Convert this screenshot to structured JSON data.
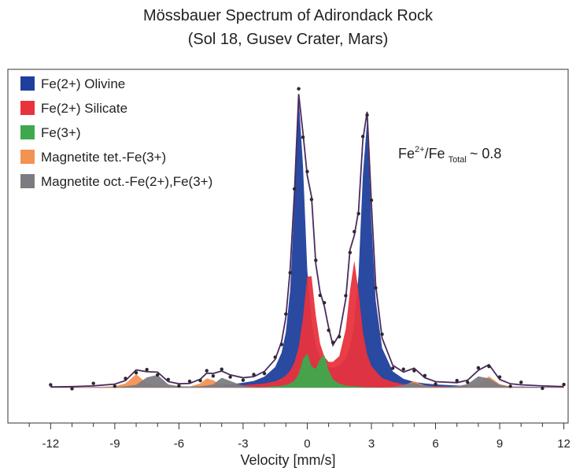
{
  "chart_data": {
    "type": "area",
    "title": "Mössbauer Spectrum of Adirondack Rock",
    "subtitle": "(Sol 18, Gusev Crater, Mars)",
    "xlabel": "Velocity [mm/s]",
    "xlim": [
      -14,
      12.2
    ],
    "xticks": [
      -12,
      -9,
      -6,
      -3,
      0,
      3,
      6,
      9,
      12
    ],
    "xminorticks": [
      -13,
      -11,
      -10,
      -8,
      -7,
      -5,
      -4,
      -2,
      -1,
      1,
      2,
      4,
      5,
      7,
      8,
      10,
      11
    ],
    "ylim": [
      -10,
      90
    ],
    "legend": "upper left",
    "annotation": {
      "parts": [
        "Fe",
        "2+",
        "/Fe",
        "Total",
        "~ 0.8"
      ]
    },
    "x": [
      -12,
      -11,
      -10,
      -9,
      -8.5,
      -8,
      -7.5,
      -7,
      -6.5,
      -6,
      -5.5,
      -5,
      -4.7,
      -4.4,
      -4,
      -3.6,
      -3,
      -2.5,
      -2,
      -1.5,
      -1.2,
      -1,
      -0.8,
      -0.6,
      -0.4,
      -0.2,
      0,
      0.2,
      0.4,
      0.6,
      0.8,
      1,
      1.2,
      1.5,
      1.8,
      2,
      2.2,
      2.4,
      2.6,
      2.8,
      3,
      3.2,
      3.5,
      4,
      4.5,
      5,
      5.5,
      6,
      7,
      7.5,
      8,
      8.5,
      9,
      9.5,
      10,
      11,
      12
    ],
    "series": [
      {
        "name": "Fe(2+) Olivine",
        "color": "#1f3f9c",
        "values": [
          0.1,
          0.1,
          0.1,
          0.2,
          0.2,
          0.2,
          0.2,
          0.2,
          0.3,
          0.3,
          0.3,
          0.4,
          0.5,
          0.6,
          0.8,
          0.9,
          1.4,
          1.9,
          3.1,
          5.8,
          9.9,
          15.7,
          27.4,
          52.2,
          81.9,
          62.9,
          33.4,
          18.8,
          12.0,
          8.6,
          6.8,
          5.8,
          5.6,
          6.2,
          8.3,
          11.6,
          18.1,
          32.0,
          60.0,
          75.4,
          46.9,
          24.7,
          11.2,
          4.6,
          2.5,
          1.6,
          1.2,
          0.9,
          0.6,
          0.5,
          0.4,
          0.4,
          0.3,
          0.3,
          0.3,
          0.2,
          0.2
        ]
      },
      {
        "name": "Fe(2+) Silicate",
        "color": "#e8333d",
        "values": [
          0.1,
          0.1,
          0.2,
          0.2,
          0.2,
          0.2,
          0.2,
          0.2,
          0.3,
          0.3,
          0.3,
          0.4,
          0.4,
          0.4,
          0.5,
          0.5,
          0.7,
          0.9,
          1.2,
          1.8,
          2.6,
          3.4,
          4.8,
          7.1,
          11.5,
          19.8,
          31.4,
          31.5,
          20.4,
          12.5,
          8.7,
          7.3,
          7.3,
          8.9,
          16.5,
          27.5,
          35.9,
          27.1,
          15.8,
          9.4,
          6.1,
          4.7,
          2.7,
          1.6,
          1.0,
          0.7,
          0.5,
          0.4,
          0.3,
          0.3,
          0.3,
          0.3,
          0.2,
          0.2,
          0.2,
          0.1,
          0.1
        ]
      },
      {
        "name": "Fe(3+)",
        "color": "#3da94c",
        "values": [
          0,
          0,
          0,
          0,
          0,
          0,
          0,
          0,
          0,
          0,
          0,
          0,
          0,
          0,
          0,
          0,
          0.1,
          0.1,
          0.2,
          0.4,
          0.5,
          0.8,
          1.2,
          2.0,
          3.9,
          8.1,
          9.7,
          6.0,
          5.3,
          8.1,
          9.2,
          4.8,
          2.4,
          1.1,
          0.6,
          0.4,
          0.4,
          0.3,
          0.2,
          0.1,
          0.1,
          0.1,
          0,
          0,
          0,
          0,
          0,
          0,
          0,
          0,
          0,
          0,
          0,
          0,
          0,
          0,
          0
        ]
      },
      {
        "name": "Magnetite tet.-Fe(3+)",
        "color": "#f39352",
        "values": [
          0,
          0,
          0.1,
          0.4,
          1.2,
          3.8,
          1.2,
          0.4,
          0.2,
          0.1,
          0.3,
          1.2,
          2.6,
          2.1,
          0.6,
          0.3,
          0.1,
          0,
          0,
          0,
          0,
          0,
          0,
          0,
          0,
          0,
          0,
          0,
          0,
          0,
          0,
          0,
          0,
          0,
          0,
          0,
          0,
          0,
          0,
          0,
          0,
          0,
          0,
          0.2,
          0.6,
          1.8,
          0.6,
          0.2,
          0.1,
          0.3,
          1.0,
          3.2,
          1.0,
          0.3,
          0.1,
          0,
          0
        ]
      },
      {
        "name": "Magnetite oct.-Fe(2+),Fe(3+)",
        "color": "#7c7b82",
        "values": [
          0,
          0.1,
          0.1,
          0.2,
          0.4,
          0.8,
          2.9,
          3.6,
          0.9,
          0.4,
          0.3,
          0.4,
          0.6,
          0.9,
          2.8,
          1.9,
          0.5,
          0.2,
          0.1,
          0,
          0,
          0,
          0,
          0,
          0,
          0,
          0,
          0,
          0,
          0,
          0,
          0,
          0,
          0,
          0,
          0,
          0,
          0,
          0,
          0,
          0,
          0,
          0,
          0.2,
          0.8,
          1.4,
          0.5,
          0.2,
          0.4,
          1.0,
          3.2,
          2.6,
          0.8,
          0.3,
          0.2,
          0.1,
          0
        ]
      }
    ],
    "fit": {
      "color": "#4b2b5e",
      "values": [
        0.2,
        0.3,
        0.5,
        1.0,
        2.0,
        5.0,
        4.5,
        4.4,
        1.7,
        1.1,
        1.2,
        2.4,
        4.1,
        4.0,
        4.7,
        3.6,
        2.8,
        3.1,
        4.6,
        8.0,
        13.0,
        19.9,
        33.4,
        55,
        83,
        72,
        60,
        54,
        35,
        27,
        23,
        17,
        12,
        15,
        25,
        39,
        43,
        50,
        70,
        78,
        52,
        29,
        14,
        6.3,
        4.4,
        5.5,
        2.8,
        1.7,
        1.4,
        2.1,
        4.9,
        6.5,
        2.3,
        1.1,
        0.8,
        0.5,
        0.3
      ]
    },
    "measured": {
      "color": "#2a2a2a",
      "values": [
        0.8,
        -0.3,
        1.2,
        0.4,
        2.6,
        4.2,
        5.1,
        3.6,
        2.3,
        0.5,
        1.8,
        2.0,
        4.8,
        3.3,
        5.2,
        3.0,
        2.1,
        3.7,
        4.0,
        8.6,
        12.2,
        20.8,
        32.5,
        56.2,
        84.5,
        70.8,
        61.1,
        53.2,
        36.0,
        26.1,
        24.0,
        16.2,
        12.8,
        14.4,
        26.0,
        38.2,
        44.1,
        49.2,
        71.0,
        77.1,
        53.0,
        28.2,
        15.1,
        5.5,
        5.2,
        4.8,
        3.4,
        1.0,
        2.0,
        1.5,
        5.6,
        6.0,
        3.0,
        0.4,
        1.5,
        -0.2,
        0.9
      ]
    }
  }
}
